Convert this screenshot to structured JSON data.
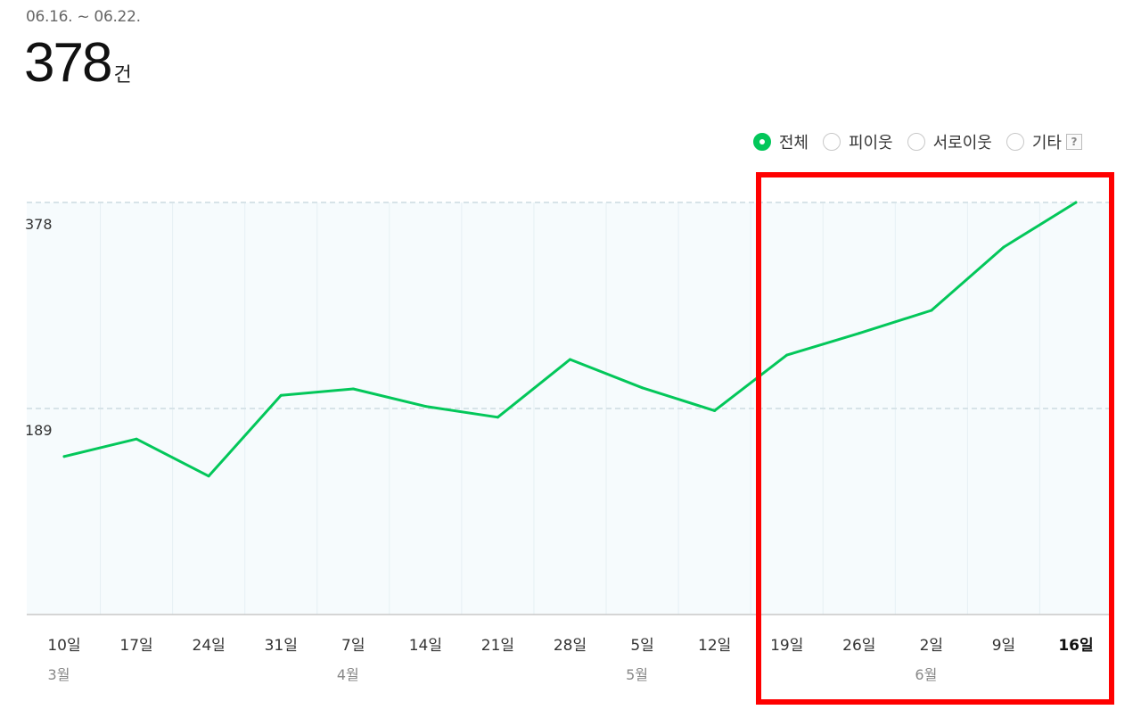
{
  "header": {
    "period": "06.16. ~ 06.22.",
    "total_value": "378",
    "total_unit": "건"
  },
  "filters": {
    "items": [
      {
        "label": "전체",
        "checked": true
      },
      {
        "label": "피이웃",
        "checked": false
      },
      {
        "label": "서로이웃",
        "checked": false
      },
      {
        "label": "기타",
        "checked": false
      }
    ],
    "help_label": "?"
  },
  "colors": {
    "line": "#03c75a",
    "plot_background": "#f6fbfd",
    "highlight": "#ff0000"
  },
  "chart_data": {
    "type": "line",
    "x": [
      "10일",
      "17일",
      "24일",
      "31일",
      "7일",
      "14일",
      "21일",
      "28일",
      "5일",
      "12일",
      "19일",
      "26일",
      "2일",
      "9일",
      "16일"
    ],
    "months": [
      {
        "label": "3월",
        "at_index": 0
      },
      {
        "label": "4월",
        "at_index": 4
      },
      {
        "label": "5월",
        "at_index": 8
      },
      {
        "label": "6월",
        "at_index": 12
      }
    ],
    "series": [
      {
        "values": [
          145,
          161,
          127,
          201,
          207,
          191,
          181,
          234,
          208,
          187,
          238,
          258,
          279,
          337,
          378
        ]
      }
    ],
    "yticks": [
      189,
      378
    ],
    "ylim": [
      0,
      378
    ],
    "bold_last_tick": true,
    "grid": true,
    "highlighted_range": {
      "from": "19일",
      "to": "16일"
    }
  }
}
